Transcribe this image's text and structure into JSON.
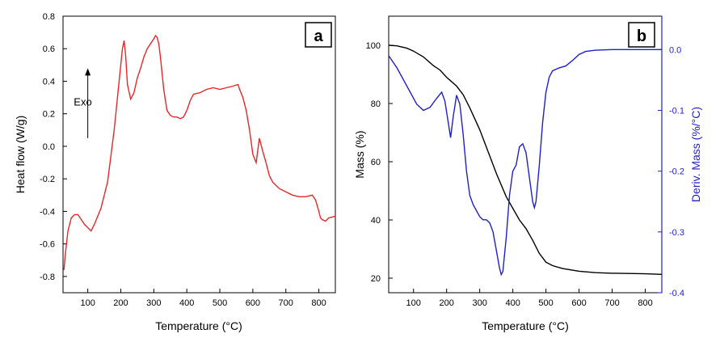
{
  "chart_data": [
    {
      "type": "line",
      "panel_label": "a",
      "xlabel": "Temperature (°C)",
      "ylabel": "Heat flow (W/g)",
      "xlim": [
        25,
        850
      ],
      "ylim": [
        -0.9,
        0.8
      ],
      "xticks": [
        100,
        200,
        300,
        400,
        500,
        600,
        700,
        800
      ],
      "yticks": [
        -0.8,
        -0.6,
        -0.4,
        -0.2,
        0.0,
        0.2,
        0.4,
        0.6,
        0.8
      ],
      "ytick_labels": [
        "-0.8",
        "-0.6",
        "-0.4",
        "-0.2",
        "0.0",
        "0.2",
        "0.4",
        "0.6",
        "0.8"
      ],
      "annotation": {
        "text": "Exo",
        "arrow_from": [
          100,
          0.05
        ],
        "arrow_to": [
          100,
          0.48
        ],
        "text_at": [
          85,
          0.25
        ]
      },
      "series": [
        {
          "color": "#e8262a",
          "x": [
            28,
            32,
            40,
            50,
            60,
            70,
            80,
            90,
            100,
            110,
            120,
            140,
            160,
            180,
            195,
            205,
            210,
            215,
            220,
            230,
            240,
            250,
            260,
            270,
            280,
            290,
            300,
            305,
            310,
            315,
            320,
            330,
            340,
            350,
            360,
            370,
            380,
            390,
            400,
            410,
            420,
            440,
            460,
            480,
            500,
            520,
            540,
            555,
            560,
            570,
            580,
            590,
            600,
            610,
            620,
            630,
            640,
            650,
            660,
            680,
            700,
            720,
            740,
            760,
            780,
            790,
            800,
            805,
            810,
            820,
            830,
            850
          ],
          "y": [
            -0.76,
            -0.66,
            -0.52,
            -0.44,
            -0.42,
            -0.42,
            -0.45,
            -0.48,
            -0.5,
            -0.52,
            -0.48,
            -0.38,
            -0.22,
            0.1,
            0.4,
            0.6,
            0.65,
            0.55,
            0.38,
            0.29,
            0.33,
            0.42,
            0.48,
            0.55,
            0.6,
            0.63,
            0.66,
            0.68,
            0.67,
            0.63,
            0.55,
            0.35,
            0.22,
            0.19,
            0.18,
            0.18,
            0.17,
            0.18,
            0.22,
            0.28,
            0.32,
            0.33,
            0.35,
            0.36,
            0.35,
            0.36,
            0.37,
            0.38,
            0.35,
            0.3,
            0.22,
            0.1,
            -0.05,
            -0.1,
            0.05,
            -0.03,
            -0.1,
            -0.18,
            -0.22,
            -0.26,
            -0.28,
            -0.3,
            -0.31,
            -0.31,
            -0.3,
            -0.33,
            -0.4,
            -0.44,
            -0.45,
            -0.46,
            -0.44,
            -0.43
          ]
        }
      ]
    },
    {
      "type": "line",
      "panel_label": "b",
      "xlabel": "Temperature (°C)",
      "ylabel": "Mass (%)",
      "ylabel_right": "Deriv. Mass (%/°C)",
      "xlim": [
        25,
        850
      ],
      "ylim": [
        15,
        110
      ],
      "ylim_right": [
        -0.4,
        0.055
      ],
      "xticks": [
        100,
        200,
        300,
        400,
        500,
        600,
        700,
        800
      ],
      "yticks": [
        20,
        40,
        60,
        80,
        100
      ],
      "yticks_right": [
        -0.4,
        -0.3,
        -0.2,
        -0.1,
        0.0
      ],
      "ytick_labels_right": [
        "-0.4",
        "-0.3",
        "-0.2",
        "-0.1",
        "0.0"
      ],
      "series": [
        {
          "color": "#000000",
          "axis": "left",
          "x": [
            25,
            50,
            80,
            100,
            130,
            160,
            180,
            200,
            210,
            230,
            250,
            270,
            300,
            330,
            350,
            380,
            400,
            420,
            440,
            460,
            480,
            500,
            520,
            550,
            600,
            650,
            700,
            750,
            800,
            850
          ],
          "y": [
            100,
            99.8,
            99.0,
            98,
            96,
            93,
            91.5,
            89,
            88,
            86,
            83,
            78.5,
            71,
            62,
            56,
            48,
            44,
            40,
            37,
            33,
            28.5,
            25.5,
            24.3,
            23.3,
            22.4,
            21.9,
            21.7,
            21.6,
            21.5,
            21.3
          ]
        },
        {
          "color": "#1f1fcc",
          "axis": "right",
          "x": [
            25,
            50,
            80,
            110,
            130,
            150,
            170,
            185,
            195,
            205,
            212,
            220,
            230,
            240,
            250,
            260,
            270,
            280,
            290,
            300,
            310,
            320,
            330,
            340,
            350,
            360,
            365,
            370,
            380,
            390,
            400,
            410,
            420,
            430,
            440,
            450,
            460,
            465,
            470,
            480,
            490,
            500,
            510,
            520,
            540,
            560,
            580,
            600,
            620,
            650,
            700,
            750,
            800,
            850
          ],
          "y": [
            -0.01,
            -0.03,
            -0.06,
            -0.09,
            -0.1,
            -0.095,
            -0.08,
            -0.07,
            -0.085,
            -0.12,
            -0.145,
            -0.11,
            -0.075,
            -0.09,
            -0.14,
            -0.2,
            -0.24,
            -0.255,
            -0.265,
            -0.275,
            -0.28,
            -0.28,
            -0.285,
            -0.3,
            -0.33,
            -0.36,
            -0.37,
            -0.365,
            -0.31,
            -0.24,
            -0.2,
            -0.19,
            -0.16,
            -0.155,
            -0.17,
            -0.21,
            -0.25,
            -0.26,
            -0.25,
            -0.19,
            -0.12,
            -0.07,
            -0.045,
            -0.035,
            -0.03,
            -0.027,
            -0.018,
            -0.008,
            -0.003,
            -0.001,
            0.0,
            0.0,
            0.0,
            0.0
          ]
        }
      ]
    }
  ]
}
